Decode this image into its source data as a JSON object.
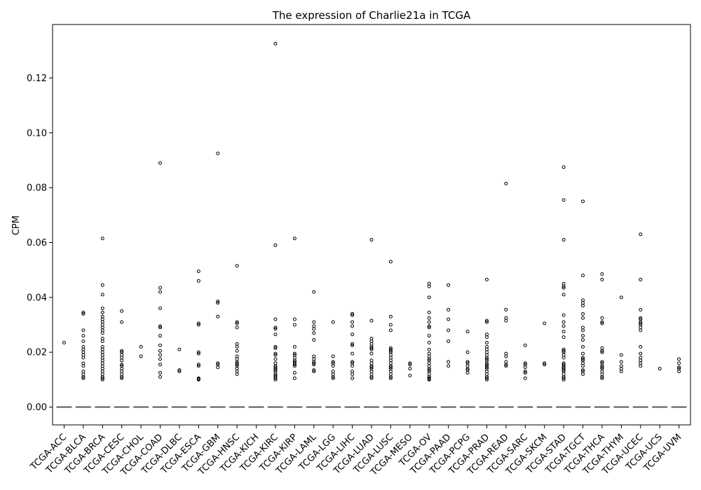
{
  "chart_data": {
    "type": "box",
    "title": "The expression of Charlie21a in TCGA",
    "xlabel": "",
    "ylabel": "CPM",
    "ylim": [
      -0.0065,
      0.1395
    ],
    "yticks": [
      0.0,
      0.02,
      0.04,
      0.06,
      0.08,
      0.1,
      0.12
    ],
    "ytick_labels": [
      "0.00",
      "0.02",
      "0.04",
      "0.06",
      "0.08",
      "0.10",
      "0.12"
    ],
    "grid": false,
    "legend": "none",
    "median_all": 0.0,
    "categories": [
      "TCGA-ACC",
      "TCGA-BLCA",
      "TCGA-BRCA",
      "TCGA-CESC",
      "TCGA-CHOL",
      "TCGA-COAD",
      "TCGA-DLBC",
      "TCGA-ESCA",
      "TCGA-GBM",
      "TCGA-HNSC",
      "TCGA-KICH",
      "TCGA-KIRC",
      "TCGA-KIRP",
      "TCGA-LAML",
      "TCGA-LGG",
      "TCGA-LIHC",
      "TCGA-LUAD",
      "TCGA-LUSC",
      "TCGA-MESO",
      "TCGA-OV",
      "TCGA-PAAD",
      "TCGA-PCPG",
      "TCGA-PRAD",
      "TCGA-READ",
      "TCGA-SARC",
      "TCGA-SKCM",
      "TCGA-STAD",
      "TCGA-TGCT",
      "TCGA-THCA",
      "TCGA-THYM",
      "TCGA-UCEC",
      "TCGA-UCS",
      "TCGA-UVM"
    ],
    "outliers": [
      [
        0.0235
      ],
      [
        0.034,
        0.0345,
        0.028,
        0.026,
        0.024,
        0.022,
        0.021,
        0.02,
        0.019,
        0.018,
        0.016,
        0.015,
        0.013,
        0.012,
        0.011,
        0.0105
      ],
      [
        0.0615,
        0.0445,
        0.041,
        0.036,
        0.0345,
        0.033,
        0.032,
        0.031,
        0.03,
        0.029,
        0.028,
        0.027,
        0.025,
        0.024,
        0.022,
        0.021,
        0.02,
        0.019,
        0.018,
        0.017,
        0.016,
        0.015,
        0.014,
        0.013,
        0.012,
        0.011,
        0.0105,
        0.01
      ],
      [
        0.035,
        0.031,
        0.0205,
        0.02,
        0.019,
        0.018,
        0.017,
        0.0155,
        0.015,
        0.014,
        0.013,
        0.012,
        0.011,
        0.0105
      ],
      [
        0.022,
        0.0185
      ],
      [
        0.089,
        0.0435,
        0.042,
        0.036,
        0.0295,
        0.029,
        0.026,
        0.0225,
        0.0205,
        0.019,
        0.0175,
        0.0155,
        0.0125,
        0.011
      ],
      [
        0.021,
        0.0135,
        0.013
      ],
      [
        0.0495,
        0.046,
        0.0305,
        0.03,
        0.02,
        0.0195,
        0.0155,
        0.015,
        0.0105,
        0.0102,
        0.01
      ],
      [
        0.0925,
        0.0385,
        0.038,
        0.033,
        0.016,
        0.0155,
        0.0145
      ],
      [
        0.0515,
        0.031,
        0.0305,
        0.029,
        0.023,
        0.022,
        0.0205,
        0.0185,
        0.0175,
        0.0165,
        0.016,
        0.0155,
        0.015,
        0.014,
        0.013,
        0.012
      ],
      [],
      [
        0.1325,
        0.059,
        0.032,
        0.029,
        0.0285,
        0.0265,
        0.022,
        0.0215,
        0.0195,
        0.019,
        0.0175,
        0.016,
        0.015,
        0.0145,
        0.014,
        0.0135,
        0.013,
        0.012,
        0.0115,
        0.011,
        0.0105,
        0.01
      ],
      [
        0.0615,
        0.032,
        0.03,
        0.022,
        0.0195,
        0.019,
        0.018,
        0.017,
        0.0165,
        0.016,
        0.0155,
        0.015,
        0.0125,
        0.0105
      ],
      [
        0.042,
        0.031,
        0.0295,
        0.0285,
        0.027,
        0.0245,
        0.0185,
        0.0175,
        0.0165,
        0.016,
        0.0155,
        0.0135,
        0.013
      ],
      [
        0.031,
        0.0185,
        0.0165,
        0.016,
        0.015,
        0.013,
        0.012,
        0.011,
        0.0105
      ],
      [
        0.034,
        0.0335,
        0.031,
        0.0295,
        0.0265,
        0.023,
        0.0225,
        0.0195,
        0.0165,
        0.016,
        0.015,
        0.013,
        0.012,
        0.0105
      ],
      [
        0.061,
        0.0315,
        0.025,
        0.024,
        0.023,
        0.022,
        0.0215,
        0.021,
        0.0195,
        0.017,
        0.016,
        0.015,
        0.0145,
        0.014,
        0.013,
        0.012,
        0.011,
        0.0105
      ],
      [
        0.053,
        0.033,
        0.03,
        0.028,
        0.0215,
        0.021,
        0.0205,
        0.02,
        0.019,
        0.018,
        0.017,
        0.016,
        0.015,
        0.0145,
        0.014,
        0.013,
        0.012,
        0.011,
        0.0105
      ],
      [
        0.016,
        0.0155,
        0.014,
        0.0115
      ],
      [
        0.045,
        0.044,
        0.04,
        0.0345,
        0.0325,
        0.031,
        0.0295,
        0.029,
        0.026,
        0.0235,
        0.021,
        0.0195,
        0.0185,
        0.0175,
        0.017,
        0.016,
        0.015,
        0.014,
        0.0135,
        0.013,
        0.012,
        0.011,
        0.0105,
        0.0102,
        0.01
      ],
      [
        0.0445,
        0.0355,
        0.032,
        0.028,
        0.024,
        0.0165,
        0.015
      ],
      [
        0.0275,
        0.02,
        0.0165,
        0.016,
        0.015,
        0.014,
        0.0135,
        0.0125
      ],
      [
        0.0465,
        0.0315,
        0.031,
        0.0265,
        0.0255,
        0.0235,
        0.022,
        0.021,
        0.02,
        0.019,
        0.018,
        0.0175,
        0.017,
        0.016,
        0.0155,
        0.015,
        0.0145,
        0.014,
        0.013,
        0.012,
        0.011,
        0.0105,
        0.01
      ],
      [
        0.0815,
        0.0355,
        0.0325,
        0.0315,
        0.0195,
        0.0185,
        0.0165,
        0.0155,
        0.015
      ],
      [
        0.0225,
        0.016,
        0.0155,
        0.0145,
        0.013,
        0.0125,
        0.0105
      ],
      [
        0.0305,
        0.016,
        0.0155
      ],
      [
        0.0875,
        0.0755,
        0.061,
        0.045,
        0.044,
        0.0435,
        0.041,
        0.0335,
        0.031,
        0.0295,
        0.0275,
        0.0255,
        0.021,
        0.0205,
        0.02,
        0.019,
        0.018,
        0.016,
        0.0155,
        0.015,
        0.0145,
        0.014,
        0.0135,
        0.013,
        0.012,
        0.011,
        0.0105,
        0.01
      ],
      [
        0.075,
        0.048,
        0.039,
        0.038,
        0.037,
        0.034,
        0.0325,
        0.029,
        0.028,
        0.026,
        0.0245,
        0.022,
        0.0195,
        0.018,
        0.0175,
        0.017,
        0.016,
        0.015,
        0.0135,
        0.013,
        0.012
      ],
      [
        0.0485,
        0.0465,
        0.0325,
        0.031,
        0.0305,
        0.0215,
        0.0205,
        0.02,
        0.0165,
        0.016,
        0.015,
        0.0145,
        0.014,
        0.013,
        0.012,
        0.011,
        0.0105
      ],
      [
        0.04,
        0.019,
        0.0165,
        0.015,
        0.014,
        0.013
      ],
      [
        0.063,
        0.0465,
        0.0355,
        0.0325,
        0.032,
        0.031,
        0.0305,
        0.03,
        0.029,
        0.028,
        0.022,
        0.0195,
        0.018,
        0.017,
        0.016,
        0.015
      ],
      [
        0.014
      ],
      [
        0.0175,
        0.016,
        0.0145,
        0.014,
        0.013
      ]
    ]
  }
}
